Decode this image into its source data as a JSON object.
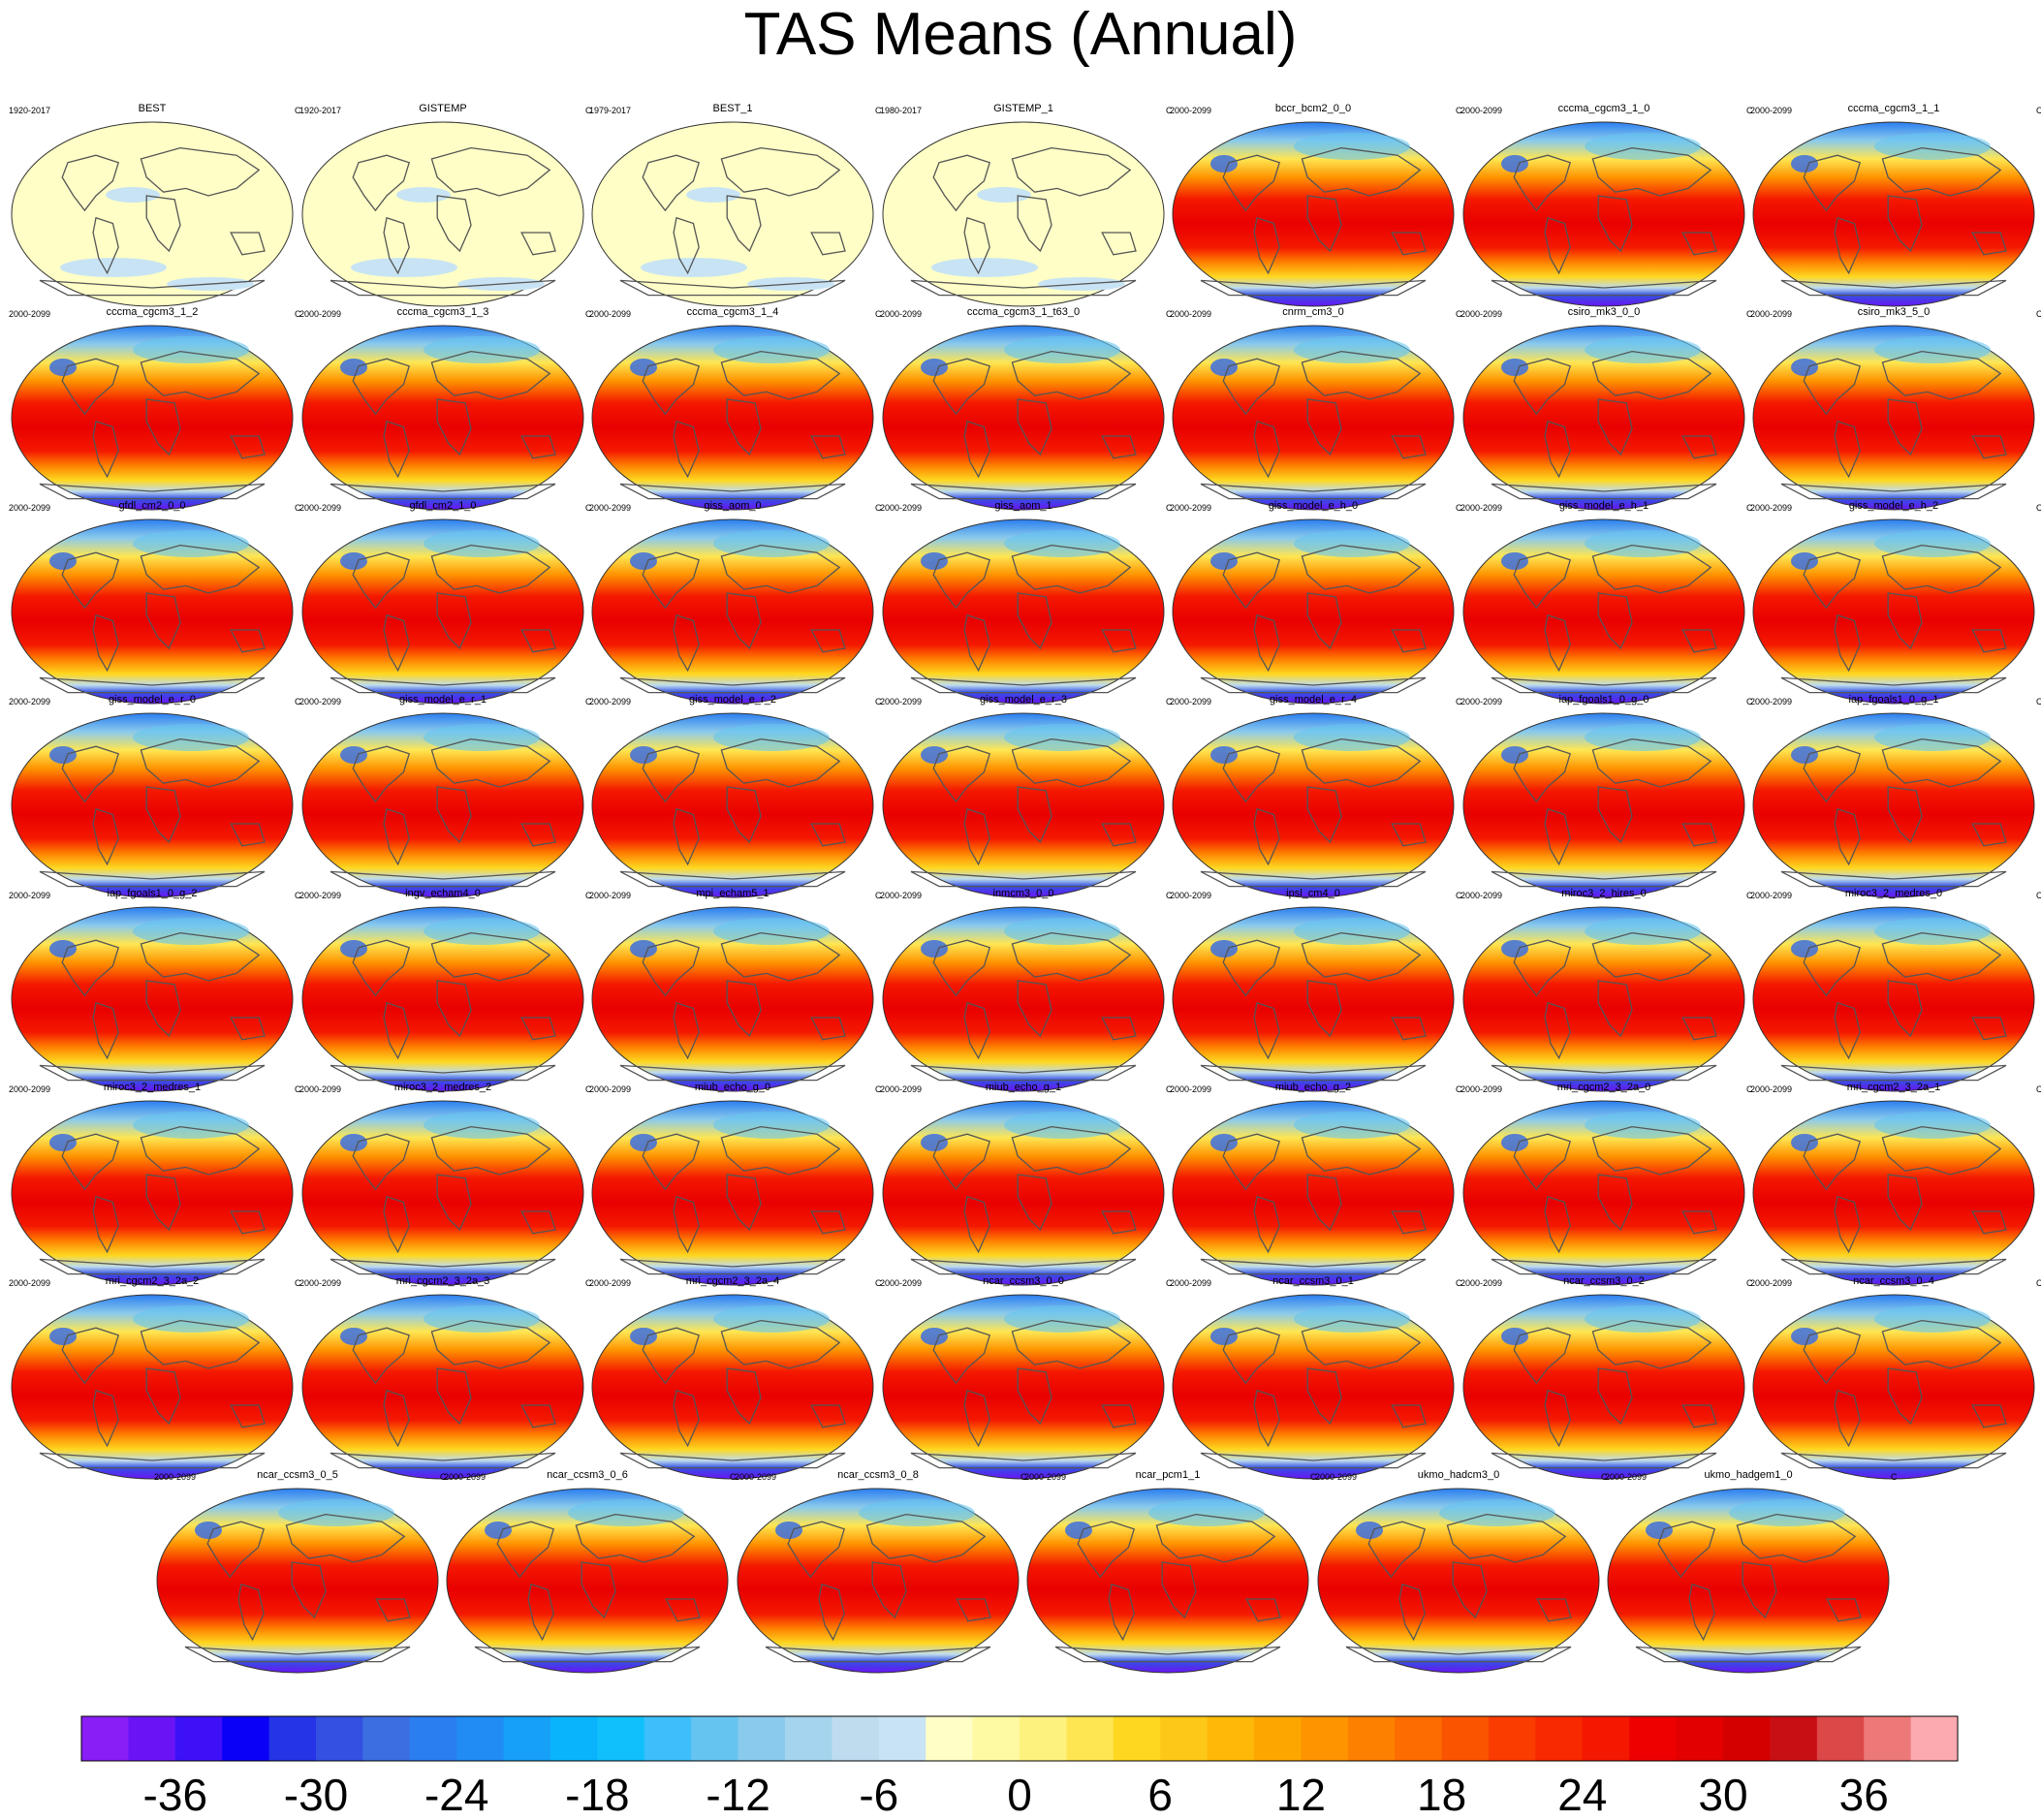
{
  "chart_data": {
    "type": "heatmap",
    "title": "TAS Means (Annual)",
    "units": "C",
    "panels": [
      {
        "name": "BEST",
        "period": "1920-2017",
        "kind": "obs"
      },
      {
        "name": "GISTEMP",
        "period": "1920-2017",
        "kind": "obs"
      },
      {
        "name": "BEST_1",
        "period": "1979-2017",
        "kind": "obs"
      },
      {
        "name": "GISTEMP_1",
        "period": "1980-2017",
        "kind": "obs"
      },
      {
        "name": "bccr_bcm2_0_0",
        "period": "2000-2099",
        "kind": "model"
      },
      {
        "name": "cccma_cgcm3_1_0",
        "period": "2000-2099",
        "kind": "model"
      },
      {
        "name": "cccma_cgcm3_1_1",
        "period": "2000-2099",
        "kind": "model"
      },
      {
        "name": "cccma_cgcm3_1_2",
        "period": "2000-2099",
        "kind": "model"
      },
      {
        "name": "cccma_cgcm3_1_3",
        "period": "2000-2099",
        "kind": "model"
      },
      {
        "name": "cccma_cgcm3_1_4",
        "period": "2000-2099",
        "kind": "model"
      },
      {
        "name": "cccma_cgcm3_1_t63_0",
        "period": "2000-2099",
        "kind": "model"
      },
      {
        "name": "cnrm_cm3_0",
        "period": "2000-2099",
        "kind": "model"
      },
      {
        "name": "csiro_mk3_0_0",
        "period": "2000-2099",
        "kind": "model"
      },
      {
        "name": "csiro_mk3_5_0",
        "period": "2000-2099",
        "kind": "model"
      },
      {
        "name": "gfdl_cm2_0_0",
        "period": "2000-2099",
        "kind": "model"
      },
      {
        "name": "gfdl_cm2_1_0",
        "period": "2000-2099",
        "kind": "model"
      },
      {
        "name": "giss_aom_0",
        "period": "2000-2099",
        "kind": "model"
      },
      {
        "name": "giss_aom_1",
        "period": "2000-2099",
        "kind": "model"
      },
      {
        "name": "giss_model_e_h_0",
        "period": "2000-2099",
        "kind": "model"
      },
      {
        "name": "giss_model_e_h_1",
        "period": "2000-2099",
        "kind": "model"
      },
      {
        "name": "giss_model_e_h_2",
        "period": "2000-2099",
        "kind": "model"
      },
      {
        "name": "giss_model_e_r_0",
        "period": "2000-2099",
        "kind": "model"
      },
      {
        "name": "giss_model_e_r_1",
        "period": "2000-2099",
        "kind": "model"
      },
      {
        "name": "giss_model_e_r_2",
        "period": "2000-2099",
        "kind": "model"
      },
      {
        "name": "giss_model_e_r_3",
        "period": "2000-2099",
        "kind": "model"
      },
      {
        "name": "giss_model_e_r_4",
        "period": "2000-2099",
        "kind": "model"
      },
      {
        "name": "iap_fgoals1_0_g_0",
        "period": "2000-2099",
        "kind": "model"
      },
      {
        "name": "iap_fgoals1_0_g_1",
        "period": "2000-2099",
        "kind": "model"
      },
      {
        "name": "iap_fgoals1_0_g_2",
        "period": "2000-2099",
        "kind": "model"
      },
      {
        "name": "ingv_echam4_0",
        "period": "2000-2099",
        "kind": "model"
      },
      {
        "name": "mpi_echam5_1",
        "period": "2000-2099",
        "kind": "model"
      },
      {
        "name": "inmcm3_0_0",
        "period": "2000-2099",
        "kind": "model"
      },
      {
        "name": "ipsl_cm4_0",
        "period": "2000-2099",
        "kind": "model"
      },
      {
        "name": "miroc3_2_hires_0",
        "period": "2000-2099",
        "kind": "model"
      },
      {
        "name": "miroc3_2_medres_0",
        "period": "2000-2099",
        "kind": "model"
      },
      {
        "name": "miroc3_2_medres_1",
        "period": "2000-2099",
        "kind": "model"
      },
      {
        "name": "miroc3_2_medres_2",
        "period": "2000-2099",
        "kind": "model"
      },
      {
        "name": "miub_echo_g_0",
        "period": "2000-2099",
        "kind": "model"
      },
      {
        "name": "miub_echo_g_1",
        "period": "2000-2099",
        "kind": "model"
      },
      {
        "name": "miub_echo_g_2",
        "period": "2000-2099",
        "kind": "model"
      },
      {
        "name": "mri_cgcm2_3_2a_0",
        "period": "2000-2099",
        "kind": "model"
      },
      {
        "name": "mri_cgcm2_3_2a_1",
        "period": "2000-2099",
        "kind": "model"
      },
      {
        "name": "mri_cgcm2_3_2a_2",
        "period": "2000-2099",
        "kind": "model"
      },
      {
        "name": "mri_cgcm2_3_2a_3",
        "period": "2000-2099",
        "kind": "model"
      },
      {
        "name": "mri_cgcm2_3_2a_4",
        "period": "2000-2099",
        "kind": "model"
      },
      {
        "name": "ncar_ccsm3_0_0",
        "period": "2000-2099",
        "kind": "model"
      },
      {
        "name": "ncar_ccsm3_0_1",
        "period": "2000-2099",
        "kind": "model"
      },
      {
        "name": "ncar_ccsm3_0_2",
        "period": "2000-2099",
        "kind": "model"
      },
      {
        "name": "ncar_ccsm3_0_4",
        "period": "2000-2099",
        "kind": "model"
      },
      {
        "name": "ncar_ccsm3_0_5",
        "period": "2000-2099",
        "kind": "model"
      },
      {
        "name": "ncar_ccsm3_0_6",
        "period": "2000-2099",
        "kind": "model"
      },
      {
        "name": "ncar_ccsm3_0_8",
        "period": "2000-2099",
        "kind": "model"
      },
      {
        "name": "ncar_pcm1_1",
        "period": "2000-2099",
        "kind": "model"
      },
      {
        "name": "ukmo_hadcm3_0",
        "period": "2000-2099",
        "kind": "model"
      },
      {
        "name": "ukmo_hadgem1_0",
        "period": "2000-2099",
        "kind": "model"
      }
    ],
    "colorbar": {
      "levels": [
        -40,
        40
      ],
      "level_step": 2,
      "tick_labels": [
        "-36",
        "-30",
        "-24",
        "-18",
        "-12",
        "-6",
        "0",
        "6",
        "12",
        "18",
        "24",
        "30",
        "36"
      ],
      "tick_values": [
        -36,
        -30,
        -24,
        -18,
        -12,
        -6,
        0,
        6,
        12,
        18,
        24,
        30,
        36
      ],
      "colors": [
        "#8a1ef6",
        "#6a14f6",
        "#3e10f8",
        "#0a00f8",
        "#2434e6",
        "#3450e2",
        "#3c6ee2",
        "#2a7ef0",
        "#208cf4",
        "#16a0f8",
        "#0ab4fc",
        "#10c0fc",
        "#3ebefa",
        "#66c4f0",
        "#8acaec",
        "#a4d4ee",
        "#bedcee",
        "#c8e4f4",
        "#fefec6",
        "#fefaa4",
        "#fef27e",
        "#fee652",
        "#fed820",
        "#fec818",
        "#feb808",
        "#fea600",
        "#fe9400",
        "#fe8000",
        "#fc6c00",
        "#fa5400",
        "#fa3c00",
        "#f82800",
        "#f41800",
        "#ee0000",
        "#e20000",
        "#d40000",
        "#c81014",
        "#dc4848",
        "#ec7878",
        "#fcaab0"
      ]
    }
  }
}
